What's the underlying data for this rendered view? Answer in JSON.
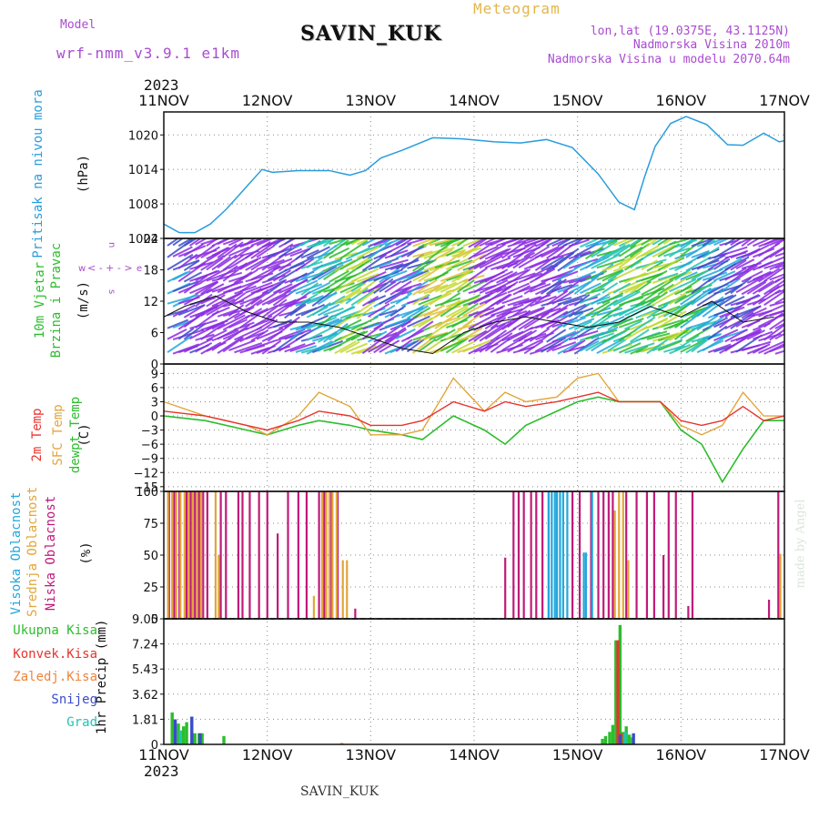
{
  "header": {
    "model_label": "Model",
    "model_name": "wrf-nmm_v3.9.1 e1km",
    "station_title": "SAVIN_KUK",
    "meteogram_label": "Meteogram",
    "lonlat": "lon,lat (19.0375E, 43.1125N)",
    "elevation": "Nadmorska Visina 2010m",
    "model_elevation": "Nadmorska Visina u modelu 2070.64m",
    "year_top": "2023",
    "year_bottom": "2023",
    "footer_station": "SAVIN_KUK",
    "credit": "made by Angel"
  },
  "colors": {
    "pressure": "#2a9ddc",
    "temp2m": "#e8332e",
    "sfc": "#e2a63b",
    "dewpt": "#2cbd2c",
    "cloud_high": "#22a7dc",
    "cloud_mid": "#e2a63b",
    "cloud_low": "#c01a7a",
    "precip_total": "#2cbd2c",
    "precip_conv": "#e8332e",
    "precip_frz": "#f0843a",
    "precip_snow": "#3b4bc9",
    "precip_grad": "#22c3b2",
    "wind_label": "#2cbd2c",
    "compass": "#a94bd1"
  },
  "x_dates": [
    "11NOV",
    "12NOV",
    "13NOV",
    "14NOV",
    "15NOV",
    "16NOV",
    "17NOV"
  ],
  "panels": {
    "pressure": {
      "ylabel_name": "Pritisak na nivou mora",
      "unit": "(hPa)",
      "ticks": [
        "1002",
        "1008",
        "1014",
        "1020"
      ]
    },
    "wind": {
      "ylabel_a": "10m Vjetar",
      "ylabel_b": "Brzina i Pravac",
      "unit": "(m/s)",
      "ticks": [
        "0",
        "6",
        "12",
        "18",
        "24"
      ],
      "compass_w": "w",
      "compass_e": "e",
      "compass_n": "n",
      "compass_s": "s"
    },
    "temp": {
      "ylabel_a": "2m Temp",
      "ylabel_b": "SFC Temp",
      "ylabel_c": "dewpt Temp",
      "unit": "(C)",
      "ticks": [
        "−15",
        "−12",
        "−9",
        "−6",
        "−3",
        "0",
        "3",
        "6",
        "9"
      ]
    },
    "cloud": {
      "ylabel_a": "Visoka Oblacnost",
      "ylabel_b": "Srednja Oblacnost",
      "ylabel_c": "Niska Oblacnost",
      "unit": "(%)",
      "ticks": [
        "0",
        "25",
        "50",
        "75",
        "100"
      ]
    },
    "precip": {
      "legend": [
        "Ukupna Kisa",
        "Konvek.Kisa",
        "Zaledj.Kisa",
        "Snijeg",
        "Grad"
      ],
      "unit": "1hr Precip (mm)",
      "ticks": [
        "0",
        "1.81",
        "3.62",
        "5.43",
        "7.24",
        "9.05"
      ]
    }
  },
  "chart_data": [
    {
      "type": "line",
      "title": "Pritisak na nivou mora",
      "ylabel": "(hPa)",
      "ylim": [
        1002,
        1024
      ],
      "x_unit": "days from 11NOV 00UTC",
      "xlim": [
        0,
        6
      ],
      "grid": true,
      "series": [
        {
          "name": "Pritisak na nivou mora",
          "x": [
            0,
            0.15,
            0.3,
            0.45,
            0.6,
            0.8,
            0.95,
            1.05,
            1.3,
            1.6,
            1.8,
            1.95,
            2.1,
            2.3,
            2.6,
            2.9,
            3.2,
            3.45,
            3.7,
            3.95,
            4.2,
            4.4,
            4.55,
            4.65,
            4.75,
            4.9,
            5.05,
            5.25,
            5.45,
            5.6,
            5.8,
            5.95,
            6.0
          ],
          "y": [
            1004.5,
            1003,
            1003,
            1004.5,
            1007,
            1011,
            1014,
            1013.5,
            1013.8,
            1013.8,
            1013,
            1013.8,
            1016,
            1017.3,
            1019.5,
            1019.3,
            1018.8,
            1018.6,
            1019.2,
            1017.8,
            1013.2,
            1008.3,
            1007,
            1012.8,
            1018,
            1022,
            1023.2,
            1021.8,
            1018.3,
            1018.2,
            1020.3,
            1018.8,
            1019
          ]
        }
      ]
    },
    {
      "type": "line",
      "title": "10m Vjetar Brzina i Pravac",
      "ylabel": "(m/s)",
      "ylim": [
        0,
        24
      ],
      "x_unit": "days from 11NOV 00UTC",
      "xlim": [
        0,
        6
      ],
      "series": [
        {
          "name": "wind speed",
          "x": [
            0,
            0.2,
            0.5,
            0.8,
            1.1,
            1.4,
            1.7,
            2.0,
            2.3,
            2.6,
            2.9,
            3.2,
            3.5,
            3.8,
            4.1,
            4.4,
            4.7,
            5.0,
            5.3,
            5.6,
            5.9
          ],
          "y": [
            9,
            11,
            13,
            10,
            8,
            8,
            7,
            5,
            3,
            2,
            6,
            8,
            9,
            8,
            7,
            8,
            11,
            9,
            12,
            8,
            9
          ]
        }
      ]
    },
    {
      "type": "line",
      "title": "2m Temp / SFC Temp / dewpt Temp",
      "ylabel": "(C)",
      "ylim": [
        -16,
        11
      ],
      "x_unit": "days from 11NOV 00UTC",
      "xlim": [
        0,
        6
      ],
      "series": [
        {
          "name": "2m Temp",
          "x": [
            0,
            0.4,
            0.8,
            1.0,
            1.3,
            1.5,
            1.8,
            2.0,
            2.3,
            2.5,
            2.8,
            3.1,
            3.3,
            3.5,
            3.8,
            4.0,
            4.2,
            4.4,
            4.6,
            4.8,
            5.0,
            5.2,
            5.4,
            5.6,
            5.8,
            6.0
          ],
          "y": [
            1,
            0,
            -2,
            -3,
            -1,
            1,
            0,
            -2,
            -2,
            -1,
            3,
            1,
            3,
            2,
            3,
            4,
            5,
            3,
            3,
            3,
            -1,
            -2,
            -1,
            2,
            -1,
            0
          ]
        },
        {
          "name": "SFC Temp",
          "x": [
            0,
            0.4,
            0.8,
            1.0,
            1.3,
            1.5,
            1.8,
            2.0,
            2.3,
            2.5,
            2.8,
            3.1,
            3.3,
            3.5,
            3.8,
            4.0,
            4.2,
            4.4,
            4.6,
            4.8,
            5.0,
            5.2,
            5.4,
            5.6,
            5.8,
            6.0
          ],
          "y": [
            3,
            0,
            -2,
            -4,
            0,
            5,
            2,
            -4,
            -4,
            -3,
            8,
            1,
            5,
            3,
            4,
            8,
            9,
            3,
            3,
            3,
            -2,
            -4,
            -2,
            5,
            0,
            0
          ]
        },
        {
          "name": "dewpt Temp",
          "x": [
            0,
            0.4,
            0.8,
            1.0,
            1.3,
            1.5,
            1.8,
            2.0,
            2.3,
            2.5,
            2.8,
            3.1,
            3.3,
            3.5,
            3.8,
            4.0,
            4.2,
            4.4,
            4.6,
            4.8,
            5.0,
            5.2,
            5.4,
            5.6,
            5.8,
            6.0
          ],
          "y": [
            0,
            -1,
            -3,
            -4,
            -2,
            -1,
            -2,
            -3,
            -4,
            -5,
            0,
            -3,
            -6,
            -2,
            1,
            3,
            4,
            3,
            3,
            3,
            -3,
            -6,
            -14,
            -7,
            -1,
            -1
          ]
        }
      ]
    },
    {
      "type": "bar",
      "title": "Visoka / Srednja / Niska Oblacnost",
      "ylabel": "(%)",
      "ylim": [
        0,
        100
      ],
      "x_unit": "days from 11NOV 00UTC",
      "xlim": [
        0,
        6
      ],
      "series": [
        {
          "name": "Visoka Oblacnost",
          "x": [
            3.72,
            3.75,
            3.78,
            3.8,
            3.83,
            3.86,
            3.9,
            4.06,
            4.08,
            4.14
          ],
          "y": [
            100,
            100,
            100,
            100,
            100,
            100,
            100,
            52,
            52,
            100
          ]
        },
        {
          "name": "Srednja Oblacnost",
          "x": [
            0.04,
            0.08,
            0.12,
            0.16,
            0.2,
            0.24,
            0.28,
            0.32,
            0.36,
            0.5,
            0.53,
            1.45,
            1.53,
            1.57,
            1.6,
            1.63,
            1.67,
            1.73,
            1.77,
            4.36,
            4.4,
            4.44,
            4.49,
            5.96
          ],
          "y": [
            100,
            100,
            100,
            100,
            100,
            100,
            100,
            100,
            100,
            100,
            50,
            18,
            100,
            100,
            100,
            100,
            100,
            46,
            46,
            85,
            100,
            100,
            46,
            51
          ]
        },
        {
          "name": "Niska Oblacnost",
          "x": [
            0.05,
            0.1,
            0.15,
            0.22,
            0.26,
            0.3,
            0.34,
            0.38,
            0.42,
            0.55,
            0.6,
            0.72,
            0.76,
            0.83,
            0.92,
            1.0,
            1.1,
            1.2,
            1.3,
            1.38,
            1.5,
            1.55,
            1.62,
            1.68,
            1.85,
            3.3,
            3.38,
            3.43,
            3.48,
            3.55,
            3.6,
            3.66,
            3.72,
            3.95,
            4.02,
            4.13,
            4.2,
            4.25,
            4.3,
            4.34,
            4.47,
            4.57,
            4.67,
            4.74,
            4.83,
            4.88,
            4.95,
            5.07,
            5.11,
            5.85,
            5.94
          ],
          "y": [
            100,
            100,
            100,
            100,
            100,
            100,
            100,
            100,
            100,
            100,
            100,
            100,
            100,
            100,
            100,
            100,
            67,
            100,
            100,
            100,
            100,
            100,
            100,
            100,
            8,
            48,
            100,
            100,
            100,
            100,
            100,
            100,
            100,
            100,
            100,
            100,
            100,
            100,
            100,
            100,
            100,
            100,
            100,
            100,
            50,
            100,
            100,
            10,
            100,
            15,
            100
          ]
        }
      ]
    },
    {
      "type": "bar",
      "title": "1hr Precip",
      "ylabel": "1hr Precip (mm)",
      "ylim": [
        0,
        9.05
      ],
      "x_unit": "days from 11NOV 00UTC",
      "xlim": [
        0,
        6
      ],
      "series": [
        {
          "name": "Ukupna Kisa",
          "x": [
            0.08,
            0.1,
            0.14,
            0.19,
            0.22,
            0.3,
            0.34,
            0.37,
            0.58,
            4.24,
            4.27,
            4.31,
            4.34,
            4.37,
            4.41,
            4.44,
            4.47,
            4.5,
            4.53
          ],
          "y": [
            2.3,
            1.8,
            1.5,
            1.3,
            1.6,
            0.8,
            0.8,
            0.8,
            0.6,
            0.4,
            0.6,
            0.9,
            1.4,
            7.5,
            8.6,
            0.9,
            1.3,
            0.7,
            0.5
          ]
        },
        {
          "name": "Konvek.Kisa",
          "x": [
            4.39,
            4.42
          ],
          "y": [
            7.5,
            0.8
          ]
        },
        {
          "name": "Zaledj.Kisa",
          "x": [
            1.72
          ],
          "y": [
            0.1
          ]
        },
        {
          "name": "Snijeg",
          "x": [
            0.11,
            0.27,
            0.35,
            4.41,
            4.54
          ],
          "y": [
            1.8,
            2.0,
            0.8,
            0.7,
            0.8
          ]
        },
        {
          "name": "Grad",
          "x": [
            0.16,
            4.46
          ],
          "y": [
            1.0,
            0.9
          ]
        }
      ]
    }
  ]
}
